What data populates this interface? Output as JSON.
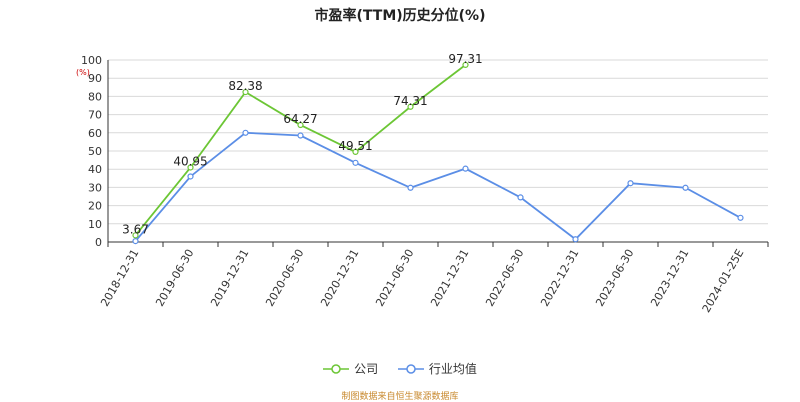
{
  "chart_data": {
    "type": "line",
    "title": "市盈率(TTM)历史分位(%)",
    "unit_label": "(%)",
    "categories": [
      "2018-12-31",
      "2019-06-30",
      "2019-12-31",
      "2020-06-30",
      "2020-12-31",
      "2021-06-30",
      "2021-12-31",
      "2022-06-30",
      "2022-12-31",
      "2023-06-30",
      "2023-12-31",
      "2024-01-25E"
    ],
    "ylim": [
      0,
      100
    ],
    "yticks": [
      0,
      10,
      20,
      30,
      40,
      50,
      60,
      70,
      80,
      90,
      100
    ],
    "grid": true,
    "legend_position": "bottom-center",
    "series": [
      {
        "name": "公司",
        "color": "#6cc635",
        "values": [
          3.67,
          40.95,
          82.38,
          64.27,
          49.51,
          74.31,
          97.31,
          null,
          null,
          null,
          null,
          null
        ],
        "show_labels": true
      },
      {
        "name": "行业均值",
        "color": "#5b8ee6",
        "values": [
          0.5,
          36,
          60,
          58.5,
          43.5,
          29.8,
          40.3,
          24.5,
          1.5,
          32.3,
          29.8,
          13.3
        ],
        "show_labels": false
      }
    ]
  },
  "source_note": "制图数据来自恒生聚源数据库"
}
